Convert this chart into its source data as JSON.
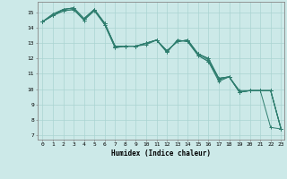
{
  "xlabel": "Humidex (Indice chaleur)",
  "ylabel": "",
  "x_range": [
    -0.5,
    23.3
  ],
  "y_range": [
    6.7,
    15.7
  ],
  "yticks": [
    7,
    8,
    9,
    10,
    11,
    12,
    13,
    14,
    15
  ],
  "xticks": [
    0,
    1,
    2,
    3,
    4,
    5,
    6,
    7,
    8,
    9,
    10,
    11,
    12,
    13,
    14,
    15,
    16,
    17,
    18,
    19,
    20,
    21,
    22,
    23
  ],
  "background_color": "#cce9e8",
  "grid_color": "#aad4d2",
  "line_color": "#2e7d6e",
  "lines": [
    [
      14.4,
      14.8,
      15.1,
      15.2,
      14.5,
      15.1,
      14.2,
      12.7,
      12.8,
      12.8,
      13.0,
      13.2,
      12.4,
      13.2,
      13.1,
      12.2,
      11.8,
      10.6,
      10.8,
      9.8,
      9.9,
      9.9,
      7.5,
      7.4
    ],
    [
      14.4,
      14.8,
      15.2,
      15.3,
      14.6,
      15.2,
      14.3,
      12.8,
      12.8,
      12.8,
      13.0,
      13.2,
      12.5,
      13.1,
      13.2,
      12.3,
      11.9,
      10.7,
      10.8,
      9.8,
      9.9,
      9.9,
      9.9,
      7.4
    ],
    [
      14.4,
      14.9,
      15.2,
      15.3,
      14.6,
      15.2,
      14.3,
      12.8,
      12.8,
      12.8,
      12.9,
      13.2,
      12.5,
      13.1,
      13.2,
      12.3,
      12.0,
      10.7,
      10.8,
      9.9,
      9.9,
      9.9,
      9.9,
      7.4
    ],
    [
      14.4,
      14.8,
      15.1,
      15.2,
      14.5,
      15.2,
      14.2,
      12.7,
      12.8,
      12.8,
      13.0,
      13.2,
      12.4,
      13.2,
      13.1,
      12.2,
      11.8,
      10.5,
      10.8,
      9.8,
      9.9,
      9.9,
      9.9,
      7.4
    ],
    [
      14.4,
      14.9,
      15.2,
      15.3,
      14.6,
      15.2,
      14.3,
      12.8,
      12.8,
      12.8,
      13.0,
      13.2,
      12.5,
      13.1,
      13.2,
      12.3,
      12.0,
      10.7,
      10.8,
      9.8,
      9.9,
      9.9,
      9.9,
      7.4
    ]
  ]
}
